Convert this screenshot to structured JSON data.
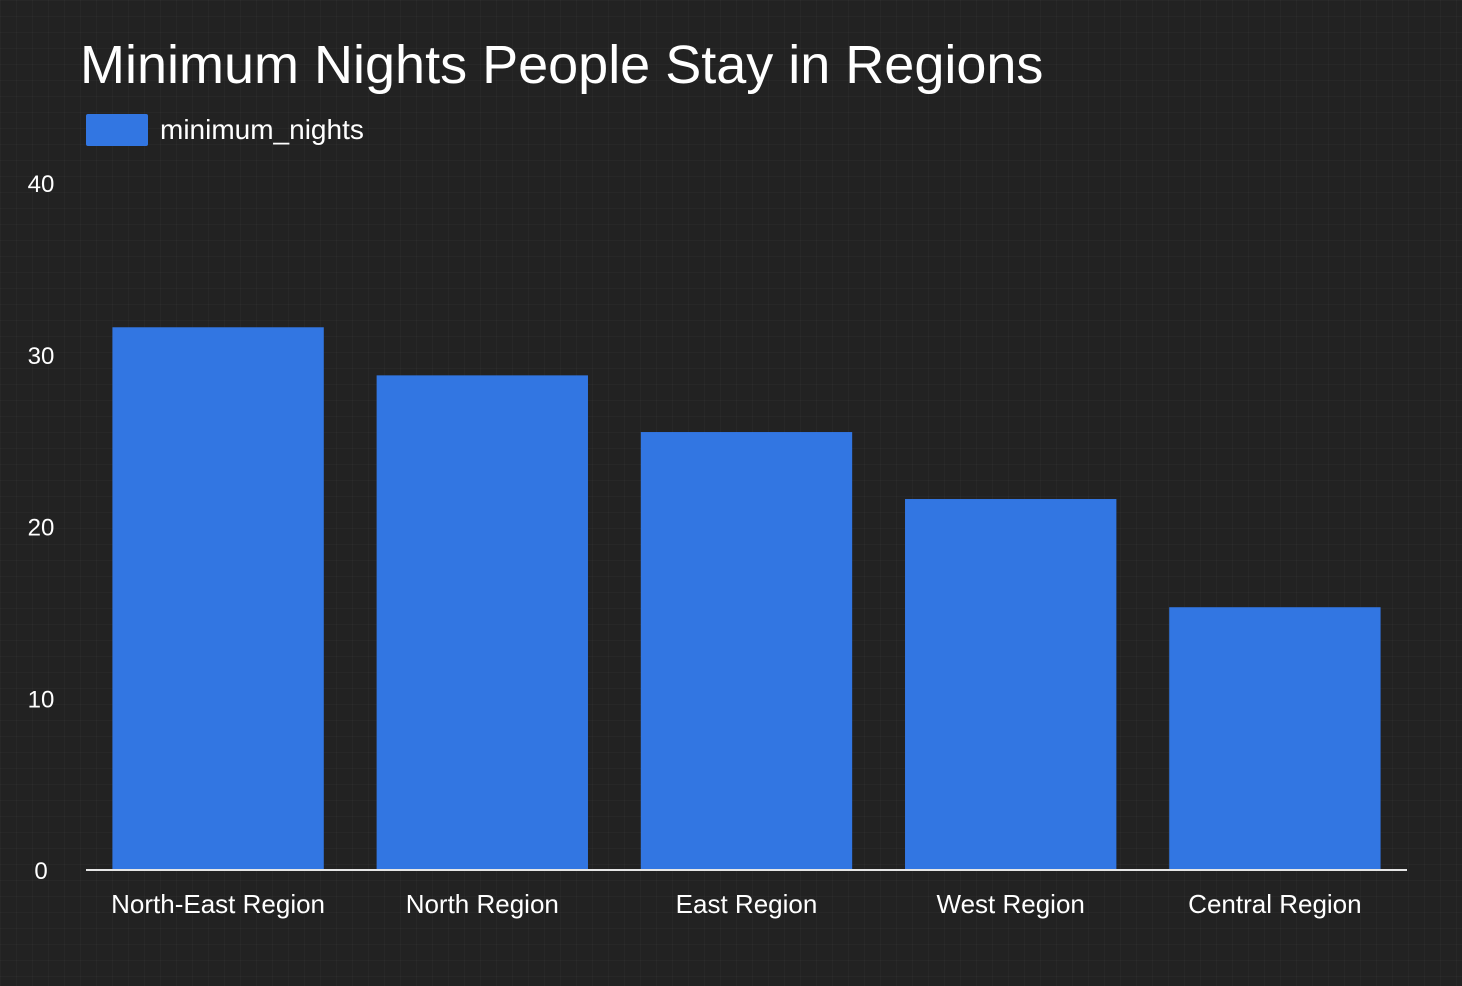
{
  "colors": {
    "background": "#222222",
    "bar": "#3276e2",
    "text": "#ffffff",
    "axis": "#e6e6e6"
  },
  "legend": {
    "label": "minimum_nights"
  },
  "chart_data": {
    "type": "bar",
    "title": "Minimum Nights People Stay in Regions",
    "xlabel": "",
    "ylabel": "",
    "categories": [
      "North-East Region",
      "North Region",
      "East Region",
      "West Region",
      "Central Region"
    ],
    "series": [
      {
        "name": "minimum_nights",
        "values": [
          31.6,
          28.8,
          25.5,
          21.6,
          15.3
        ]
      }
    ],
    "ylim": [
      0,
      40
    ],
    "yticks": [
      0,
      10,
      20,
      30,
      40
    ],
    "grid": false,
    "legend_position": "top-left"
  }
}
